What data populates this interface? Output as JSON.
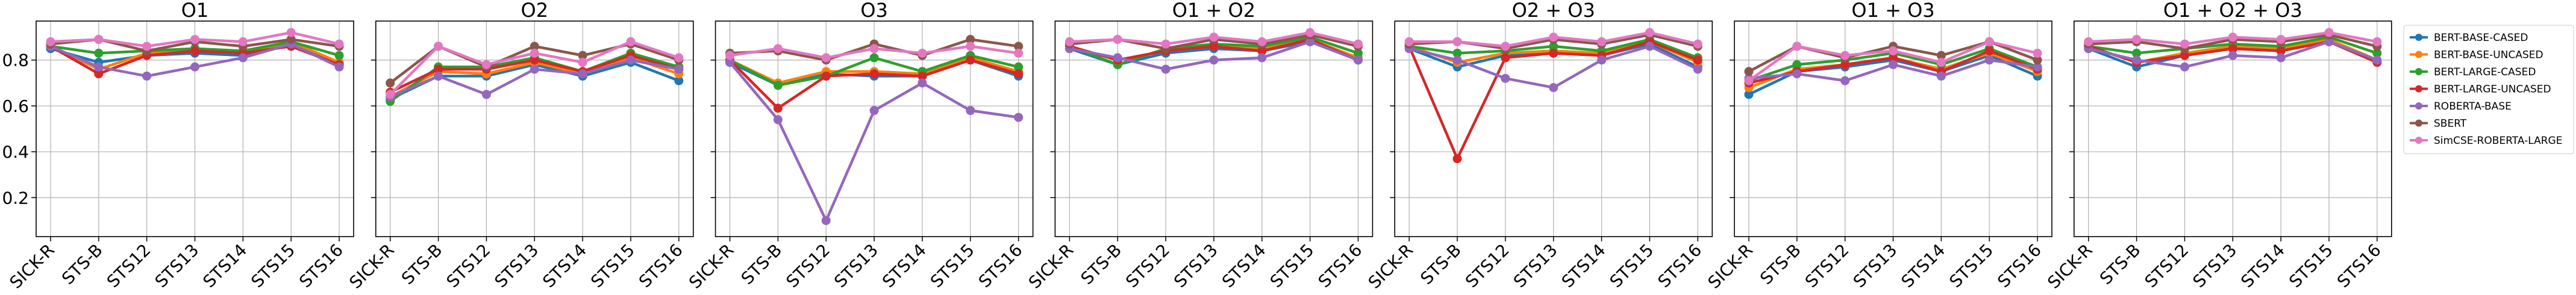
{
  "chart_data": [
    {
      "type": "line",
      "title": "O1",
      "categories": [
        "SICK-R",
        "STS-B",
        "STS12",
        "STS13",
        "STS14",
        "STS15",
        "STS16"
      ],
      "ylim": [
        0.03,
        0.97
      ],
      "yticks": [
        0.2,
        0.4,
        0.6,
        0.8
      ],
      "grid": true,
      "series": [
        {
          "name": "BERT-BASE-CASED",
          "color": "#1f77b4",
          "values": [
            0.85,
            0.79,
            0.82,
            0.83,
            0.82,
            0.87,
            0.78
          ]
        },
        {
          "name": "BERT-BASE-UNCASED",
          "color": "#ff7f0e",
          "values": [
            0.86,
            0.76,
            0.83,
            0.84,
            0.83,
            0.88,
            0.79
          ]
        },
        {
          "name": "BERT-LARGE-CASED",
          "color": "#2ca02c",
          "values": [
            0.86,
            0.83,
            0.84,
            0.85,
            0.84,
            0.88,
            0.82
          ]
        },
        {
          "name": "BERT-LARGE-UNCASED",
          "color": "#d62728",
          "values": [
            0.86,
            0.74,
            0.82,
            0.84,
            0.83,
            0.86,
            0.78
          ]
        },
        {
          "name": "ROBERTA-BASE",
          "color": "#9467bd",
          "values": [
            0.86,
            0.77,
            0.73,
            0.77,
            0.81,
            0.87,
            0.77
          ]
        },
        {
          "name": "SBERT",
          "color": "#8c564b",
          "values": [
            0.87,
            0.89,
            0.84,
            0.88,
            0.86,
            0.89,
            0.86
          ]
        },
        {
          "name": "SimCSE-ROBERTA-LARGE",
          "color": "#e377c2",
          "values": [
            0.88,
            0.89,
            0.86,
            0.89,
            0.88,
            0.92,
            0.87
          ]
        }
      ]
    },
    {
      "type": "line",
      "title": "O2",
      "categories": [
        "SICK-R",
        "STS-B",
        "STS12",
        "STS13",
        "STS14",
        "STS15",
        "STS16"
      ],
      "ylim": [
        0.03,
        0.97
      ],
      "yticks": [
        0.2,
        0.4,
        0.6,
        0.8
      ],
      "grid": true,
      "series": [
        {
          "values": [
            0.63,
            0.73,
            0.73,
            0.78,
            0.73,
            0.79,
            0.71
          ]
        },
        {
          "values": [
            0.64,
            0.75,
            0.74,
            0.79,
            0.74,
            0.81,
            0.74
          ]
        },
        {
          "values": [
            0.62,
            0.77,
            0.77,
            0.81,
            0.75,
            0.83,
            0.77
          ]
        },
        {
          "values": [
            0.66,
            0.76,
            0.76,
            0.8,
            0.75,
            0.82,
            0.76
          ]
        },
        {
          "values": [
            0.64,
            0.73,
            0.65,
            0.76,
            0.74,
            0.8,
            0.76
          ]
        },
        {
          "values": [
            0.7,
            0.86,
            0.77,
            0.86,
            0.82,
            0.87,
            0.8
          ]
        },
        {
          "values": [
            0.65,
            0.86,
            0.78,
            0.83,
            0.79,
            0.88,
            0.81
          ]
        }
      ]
    },
    {
      "type": "line",
      "title": "O3",
      "categories": [
        "SICK-R",
        "STS-B",
        "STS12",
        "STS13",
        "STS14",
        "STS15",
        "STS16"
      ],
      "ylim": [
        0.03,
        0.97
      ],
      "yticks": [
        0.2,
        0.4,
        0.6,
        0.8
      ],
      "grid": true,
      "series": [
        {
          "values": [
            0.79,
            0.69,
            0.74,
            0.73,
            0.73,
            0.8,
            0.73
          ]
        },
        {
          "values": [
            0.8,
            0.7,
            0.75,
            0.75,
            0.74,
            0.81,
            0.75
          ]
        },
        {
          "values": [
            0.8,
            0.69,
            0.73,
            0.81,
            0.75,
            0.82,
            0.77
          ]
        },
        {
          "values": [
            0.8,
            0.59,
            0.73,
            0.74,
            0.73,
            0.8,
            0.74
          ]
        },
        {
          "values": [
            0.79,
            0.54,
            0.1,
            0.58,
            0.7,
            0.58,
            0.55
          ]
        },
        {
          "values": [
            0.83,
            0.84,
            0.8,
            0.87,
            0.82,
            0.89,
            0.86
          ]
        },
        {
          "values": [
            0.82,
            0.85,
            0.81,
            0.85,
            0.83,
            0.86,
            0.83
          ]
        }
      ]
    },
    {
      "type": "line",
      "title": "O1 + O2",
      "categories": [
        "SICK-R",
        "STS-B",
        "STS12",
        "STS13",
        "STS14",
        "STS15",
        "STS16"
      ],
      "ylim": [
        0.03,
        0.97
      ],
      "yticks": [
        0.2,
        0.4,
        0.6,
        0.8
      ],
      "grid": true,
      "series": [
        {
          "values": [
            0.85,
            0.78,
            0.83,
            0.85,
            0.84,
            0.88,
            0.8
          ]
        },
        {
          "values": [
            0.86,
            0.8,
            0.84,
            0.86,
            0.85,
            0.89,
            0.81
          ]
        },
        {
          "values": [
            0.86,
            0.78,
            0.85,
            0.87,
            0.86,
            0.9,
            0.83
          ]
        },
        {
          "values": [
            0.86,
            0.8,
            0.84,
            0.86,
            0.84,
            0.89,
            0.8
          ]
        },
        {
          "values": [
            0.85,
            0.81,
            0.76,
            0.8,
            0.81,
            0.88,
            0.8
          ]
        },
        {
          "values": [
            0.87,
            0.89,
            0.85,
            0.89,
            0.87,
            0.91,
            0.86
          ]
        },
        {
          "values": [
            0.88,
            0.89,
            0.87,
            0.9,
            0.88,
            0.92,
            0.87
          ]
        }
      ]
    },
    {
      "type": "line",
      "title": "O2 + O3",
      "categories": [
        "SICK-R",
        "STS-B",
        "STS12",
        "STS13",
        "STS14",
        "STS15",
        "STS16"
      ],
      "ylim": [
        0.03,
        0.97
      ],
      "yticks": [
        0.2,
        0.4,
        0.6,
        0.8
      ],
      "grid": true,
      "series": [
        {
          "values": [
            0.85,
            0.77,
            0.82,
            0.83,
            0.82,
            0.87,
            0.77
          ]
        },
        {
          "values": [
            0.86,
            0.79,
            0.83,
            0.84,
            0.83,
            0.88,
            0.79
          ]
        },
        {
          "values": [
            0.86,
            0.83,
            0.84,
            0.86,
            0.84,
            0.89,
            0.81
          ]
        },
        {
          "values": [
            0.86,
            0.37,
            0.81,
            0.83,
            0.82,
            0.88,
            0.8
          ]
        },
        {
          "values": [
            0.85,
            0.8,
            0.72,
            0.68,
            0.8,
            0.86,
            0.76
          ]
        },
        {
          "values": [
            0.87,
            0.88,
            0.85,
            0.89,
            0.87,
            0.91,
            0.86
          ]
        },
        {
          "values": [
            0.88,
            0.88,
            0.86,
            0.9,
            0.88,
            0.92,
            0.87
          ]
        }
      ]
    },
    {
      "type": "line",
      "title": "O1 + O3",
      "categories": [
        "SICK-R",
        "STS-B",
        "STS12",
        "STS13",
        "STS14",
        "STS15",
        "STS16"
      ],
      "ylim": [
        0.03,
        0.97
      ],
      "yticks": [
        0.2,
        0.4,
        0.6,
        0.8
      ],
      "grid": true,
      "series": [
        {
          "values": [
            0.65,
            0.75,
            0.77,
            0.8,
            0.75,
            0.82,
            0.73
          ]
        },
        {
          "values": [
            0.68,
            0.76,
            0.78,
            0.81,
            0.76,
            0.83,
            0.75
          ]
        },
        {
          "values": [
            0.71,
            0.78,
            0.8,
            0.83,
            0.78,
            0.85,
            0.77
          ]
        },
        {
          "values": [
            0.7,
            0.75,
            0.78,
            0.81,
            0.75,
            0.84,
            0.76
          ]
        },
        {
          "values": [
            0.72,
            0.74,
            0.71,
            0.78,
            0.73,
            0.8,
            0.77
          ]
        },
        {
          "values": [
            0.75,
            0.86,
            0.81,
            0.86,
            0.82,
            0.88,
            0.8
          ]
        },
        {
          "values": [
            0.71,
            0.86,
            0.82,
            0.84,
            0.79,
            0.88,
            0.83
          ]
        }
      ]
    },
    {
      "type": "line",
      "title": "O1 + O2 + O3",
      "categories": [
        "SICK-R",
        "STS-B",
        "STS12",
        "STS13",
        "STS14",
        "STS15",
        "STS16"
      ],
      "ylim": [
        0.03,
        0.97
      ],
      "yticks": [
        0.2,
        0.4,
        0.6,
        0.8
      ],
      "grid": true,
      "series": [
        {
          "values": [
            0.85,
            0.77,
            0.82,
            0.85,
            0.84,
            0.88,
            0.79
          ]
        },
        {
          "values": [
            0.86,
            0.79,
            0.83,
            0.86,
            0.85,
            0.89,
            0.8
          ]
        },
        {
          "values": [
            0.86,
            0.83,
            0.85,
            0.87,
            0.86,
            0.9,
            0.83
          ]
        },
        {
          "values": [
            0.86,
            0.79,
            0.82,
            0.85,
            0.84,
            0.88,
            0.79
          ]
        },
        {
          "values": [
            0.85,
            0.8,
            0.77,
            0.82,
            0.81,
            0.88,
            0.8
          ]
        },
        {
          "values": [
            0.87,
            0.88,
            0.85,
            0.89,
            0.88,
            0.91,
            0.86
          ]
        },
        {
          "values": [
            0.88,
            0.89,
            0.87,
            0.9,
            0.89,
            0.92,
            0.88
          ]
        }
      ]
    }
  ]
}
